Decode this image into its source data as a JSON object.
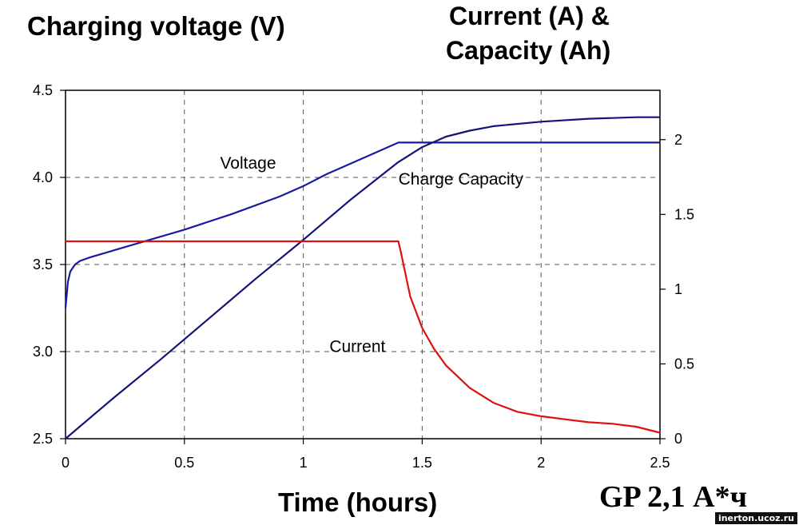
{
  "header": {
    "left_title": "Charging voltage (V)",
    "right_title_line1": "Current (A) &",
    "right_title_line2": "Capacity (Ah)"
  },
  "footer": {
    "model_label": "GP 2,1 А*ч",
    "watermark": "inerton.ucoz.ru"
  },
  "chart_data": {
    "type": "line",
    "xlabel": "Time (hours)",
    "xlim": [
      0,
      2.5
    ],
    "x_ticks": [
      0,
      0.5,
      1,
      1.5,
      2,
      2.5
    ],
    "x_tick_labels": [
      "0",
      "0.5",
      "1",
      "1.5",
      "2",
      "2.5"
    ],
    "ylim_left": [
      2.5,
      4.5
    ],
    "y_left_ticks": [
      2.5,
      3.0,
      3.5,
      4.0,
      4.5
    ],
    "y_left_tick_labels": [
      "2.5",
      "3.0",
      "3.5",
      "4.0",
      "4.5"
    ],
    "ylim_right": [
      0,
      2.33
    ],
    "y_right_ticks": [
      0,
      0.5,
      1,
      1.5,
      2
    ],
    "y_right_tick_labels": [
      "0",
      "0.5",
      "1",
      "1.5",
      "2"
    ],
    "grid": "dashed",
    "colors": {
      "voltage": "#1a1aa0",
      "capacity": "#14147a",
      "current": "#dd1111"
    },
    "series": [
      {
        "name": "Voltage",
        "axis": "left",
        "x": [
          0,
          0.01,
          0.02,
          0.04,
          0.06,
          0.1,
          0.2,
          0.3,
          0.5,
          0.7,
          0.9,
          1.0,
          1.1,
          1.2,
          1.3,
          1.4,
          1.5,
          1.7,
          2.0,
          2.2,
          2.5
        ],
        "y": [
          3.25,
          3.4,
          3.46,
          3.5,
          3.52,
          3.54,
          3.58,
          3.62,
          3.7,
          3.79,
          3.89,
          3.95,
          4.02,
          4.08,
          4.14,
          4.2,
          4.2,
          4.2,
          4.2,
          4.2,
          4.2
        ]
      },
      {
        "name": "Charge Capacity",
        "axis": "right",
        "x": [
          0,
          0.2,
          0.4,
          0.6,
          0.8,
          1.0,
          1.2,
          1.4,
          1.5,
          1.6,
          1.7,
          1.8,
          2.0,
          2.2,
          2.4,
          2.5
        ],
        "y": [
          0,
          0.27,
          0.53,
          0.8,
          1.07,
          1.33,
          1.6,
          1.85,
          1.95,
          2.02,
          2.06,
          2.09,
          2.12,
          2.14,
          2.15,
          2.15
        ]
      },
      {
        "name": "Current",
        "axis": "right",
        "x": [
          0,
          0.5,
          1.0,
          1.4,
          1.41,
          1.45,
          1.5,
          1.55,
          1.6,
          1.7,
          1.8,
          1.9,
          2.0,
          2.1,
          2.2,
          2.3,
          2.4,
          2.5
        ],
        "y": [
          1.32,
          1.32,
          1.32,
          1.32,
          1.25,
          0.95,
          0.74,
          0.6,
          0.49,
          0.34,
          0.24,
          0.18,
          0.15,
          0.13,
          0.11,
          0.1,
          0.08,
          0.04
        ]
      }
    ],
    "annotations": [
      "Voltage",
      "Charge Capacity",
      "Current"
    ]
  }
}
